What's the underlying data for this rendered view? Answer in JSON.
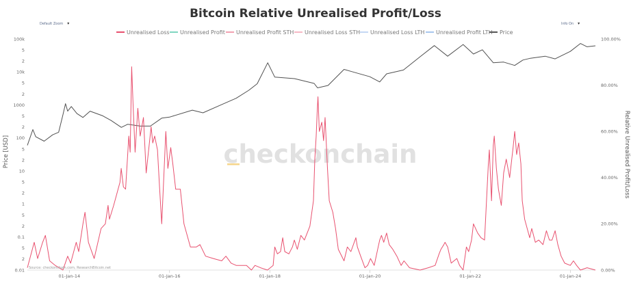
{
  "chart_data": {
    "type": "line",
    "title": "Bitcoin Relative Unrealised Profit/Loss",
    "controls": {
      "left_dropdown": "Default Zoom",
      "right_dropdown": "Info On"
    },
    "legend": [
      {
        "name": "Unrealised Loss",
        "color": "#e8506e"
      },
      {
        "name": "Unrealised Profit",
        "color": "#7fd6c0"
      },
      {
        "name": "Unrealised Profit STH",
        "color": "#f2a0b0"
      },
      {
        "name": "Unrealised Loss STH",
        "color": "#f7b8c4"
      },
      {
        "name": "Unrealised Loss LTH",
        "color": "#c4d8f4"
      },
      {
        "name": "Unrealised Profit LTH",
        "color": "#a7c6ee"
      },
      {
        "name": "Price",
        "color": "#555555"
      }
    ],
    "ylabel_left": "Price [USD]",
    "ylabel_right": "Relative Unrealised Profit/Loss",
    "left_ticks": [
      "100k",
      "5",
      "2",
      "10k",
      "5",
      "2",
      "1000",
      "5",
      "2",
      "100",
      "5",
      "2",
      "10",
      "5",
      "2",
      "1",
      "5",
      "2",
      "0.1",
      "5",
      "2",
      "0.01"
    ],
    "left_scale": "log",
    "left_range": [
      0.01,
      100000
    ],
    "right_ticks": [
      "100.00%",
      "80.00%",
      "60.00%",
      "40.00%",
      "20.00%",
      "0.00%"
    ],
    "right_range": [
      0,
      1
    ],
    "x_ticks": [
      "01-Jan-14",
      "01-Jan-16",
      "01-Jan-18",
      "01-Jan-20",
      "01-Jan-22",
      "01-Jan-24"
    ],
    "x_range": [
      "2013-03-01",
      "2024-07-01"
    ],
    "watermark": "checkonchain",
    "source": "Source: checkonchain.com, ResearchBitcoin.net",
    "series": [
      {
        "name": "Price",
        "axis": "left",
        "points": [
          [
            "2013-03-01",
            60
          ],
          [
            "2013-04-10",
            180
          ],
          [
            "2013-05-01",
            110
          ],
          [
            "2013-07-01",
            80
          ],
          [
            "2013-09-01",
            125
          ],
          [
            "2013-10-15",
            150
          ],
          [
            "2013-11-15",
            500
          ],
          [
            "2013-12-04",
            1100
          ],
          [
            "2013-12-20",
            650
          ],
          [
            "2014-01-15",
            900
          ],
          [
            "2014-02-25",
            550
          ],
          [
            "2014-04-10",
            420
          ],
          [
            "2014-06-01",
            650
          ],
          [
            "2014-09-01",
            470
          ],
          [
            "2014-11-01",
            340
          ],
          [
            "2015-01-15",
            210
          ],
          [
            "2015-03-01",
            260
          ],
          [
            "2015-06-01",
            230
          ],
          [
            "2015-08-15",
            230
          ],
          [
            "2015-11-05",
            400
          ],
          [
            "2016-01-01",
            430
          ],
          [
            "2016-06-15",
            700
          ],
          [
            "2016-09-01",
            580
          ],
          [
            "2017-01-01",
            970
          ],
          [
            "2017-05-01",
            1600
          ],
          [
            "2017-08-01",
            2800
          ],
          [
            "2017-10-01",
            4400
          ],
          [
            "2017-12-17",
            19000
          ],
          [
            "2018-02-06",
            7000
          ],
          [
            "2018-06-30",
            6300
          ],
          [
            "2018-11-20",
            4500
          ],
          [
            "2018-12-15",
            3300
          ],
          [
            "2019-03-01",
            3900
          ],
          [
            "2019-06-26",
            12000
          ],
          [
            "2019-09-01",
            10000
          ],
          [
            "2019-12-31",
            7200
          ],
          [
            "2020-03-12",
            5000
          ],
          [
            "2020-05-01",
            8800
          ],
          [
            "2020-09-01",
            11500
          ],
          [
            "2020-12-31",
            29000
          ],
          [
            "2021-04-14",
            63000
          ],
          [
            "2021-07-20",
            30000
          ],
          [
            "2021-11-10",
            68000
          ],
          [
            "2022-01-24",
            35000
          ],
          [
            "2022-03-30",
            47000
          ],
          [
            "2022-06-18",
            19000
          ],
          [
            "2022-09-01",
            20000
          ],
          [
            "2022-11-21",
            15800
          ],
          [
            "2023-01-20",
            23000
          ],
          [
            "2023-03-15",
            26000
          ],
          [
            "2023-07-01",
            30000
          ],
          [
            "2023-09-11",
            25000
          ],
          [
            "2023-12-31",
            42000
          ],
          [
            "2024-03-14",
            73000
          ],
          [
            "2024-05-01",
            58000
          ],
          [
            "2024-07-01",
            62000
          ]
        ]
      },
      {
        "name": "Unrealised Loss",
        "axis": "right",
        "points": [
          [
            "2013-03-01",
            0.01
          ],
          [
            "2013-04-20",
            0.12
          ],
          [
            "2013-05-15",
            0.05
          ],
          [
            "2013-06-20",
            0.12
          ],
          [
            "2013-07-10",
            0.15
          ],
          [
            "2013-08-10",
            0.04
          ],
          [
            "2013-09-20",
            0.02
          ],
          [
            "2013-11-15",
            0.0
          ],
          [
            "2013-12-20",
            0.06
          ],
          [
            "2014-01-10",
            0.03
          ],
          [
            "2014-02-20",
            0.12
          ],
          [
            "2014-03-10",
            0.08
          ],
          [
            "2014-04-10",
            0.2
          ],
          [
            "2014-04-25",
            0.25
          ],
          [
            "2014-05-20",
            0.12
          ],
          [
            "2014-07-01",
            0.05
          ],
          [
            "2014-08-20",
            0.18
          ],
          [
            "2014-09-20",
            0.2
          ],
          [
            "2014-10-10",
            0.28
          ],
          [
            "2014-10-20",
            0.22
          ],
          [
            "2014-11-20",
            0.28
          ],
          [
            "2015-01-05",
            0.38
          ],
          [
            "2015-01-14",
            0.44
          ],
          [
            "2015-01-30",
            0.36
          ],
          [
            "2015-02-15",
            0.35
          ],
          [
            "2015-03-10",
            0.58
          ],
          [
            "2015-03-20",
            0.51
          ],
          [
            "2015-03-31",
            0.88
          ],
          [
            "2015-04-10",
            0.72
          ],
          [
            "2015-04-25",
            0.51
          ],
          [
            "2015-05-15",
            0.7
          ],
          [
            "2015-06-01",
            0.58
          ],
          [
            "2015-06-25",
            0.66
          ],
          [
            "2015-07-15",
            0.42
          ],
          [
            "2015-08-20",
            0.62
          ],
          [
            "2015-09-01",
            0.55
          ],
          [
            "2015-09-15",
            0.58
          ],
          [
            "2015-10-05",
            0.52
          ],
          [
            "2015-10-20",
            0.36
          ],
          [
            "2015-11-05",
            0.2
          ],
          [
            "2015-11-20",
            0.4
          ],
          [
            "2015-12-05",
            0.6
          ],
          [
            "2015-12-20",
            0.44
          ],
          [
            "2016-01-10",
            0.53
          ],
          [
            "2016-01-25",
            0.46
          ],
          [
            "2016-02-15",
            0.35
          ],
          [
            "2016-03-20",
            0.35
          ],
          [
            "2016-04-15",
            0.2
          ],
          [
            "2016-06-01",
            0.1
          ],
          [
            "2016-07-15",
            0.1
          ],
          [
            "2016-08-10",
            0.11
          ],
          [
            "2016-09-20",
            0.06
          ],
          [
            "2016-11-15",
            0.05
          ],
          [
            "2017-01-15",
            0.04
          ],
          [
            "2017-02-15",
            0.06
          ],
          [
            "2017-03-25",
            0.03
          ],
          [
            "2017-05-01",
            0.02
          ],
          [
            "2017-06-15",
            0.02
          ],
          [
            "2017-07-15",
            0.02
          ],
          [
            "2017-08-20",
            0.0
          ],
          [
            "2017-09-15",
            0.02
          ],
          [
            "2017-10-25",
            0.01
          ],
          [
            "2017-12-15",
            0.0
          ],
          [
            "2018-01-25",
            0.02
          ],
          [
            "2018-02-06",
            0.1
          ],
          [
            "2018-02-25",
            0.07
          ],
          [
            "2018-03-20",
            0.08
          ],
          [
            "2018-04-05",
            0.14
          ],
          [
            "2018-04-20",
            0.08
          ],
          [
            "2018-05-20",
            0.07
          ],
          [
            "2018-06-15",
            0.1
          ],
          [
            "2018-06-29",
            0.13
          ],
          [
            "2018-07-20",
            0.09
          ],
          [
            "2018-08-15",
            0.15
          ],
          [
            "2018-09-10",
            0.13
          ],
          [
            "2018-10-20",
            0.19
          ],
          [
            "2018-11-15",
            0.3
          ],
          [
            "2018-11-25",
            0.48
          ],
          [
            "2018-12-05",
            0.58
          ],
          [
            "2018-12-12",
            0.68
          ],
          [
            "2018-12-18",
            0.75
          ],
          [
            "2018-12-28",
            0.6
          ],
          [
            "2019-01-15",
            0.64
          ],
          [
            "2019-01-28",
            0.56
          ],
          [
            "2019-02-08",
            0.66
          ],
          [
            "2019-02-25",
            0.44
          ],
          [
            "2019-03-10",
            0.3
          ],
          [
            "2019-04-05",
            0.25
          ],
          [
            "2019-04-25",
            0.18
          ],
          [
            "2019-05-15",
            0.09
          ],
          [
            "2019-06-26",
            0.04
          ],
          [
            "2019-07-20",
            0.1
          ],
          [
            "2019-08-15",
            0.08
          ],
          [
            "2019-09-20",
            0.14
          ],
          [
            "2019-10-01",
            0.1
          ],
          [
            "2019-10-25",
            0.06
          ],
          [
            "2019-11-25",
            0.01
          ],
          [
            "2019-12-15",
            0.02
          ],
          [
            "2020-01-05",
            0.05
          ],
          [
            "2020-02-01",
            0.02
          ],
          [
            "2020-03-01",
            0.1
          ],
          [
            "2020-03-12",
            0.13
          ],
          [
            "2020-03-25",
            0.15
          ],
          [
            "2020-04-10",
            0.12
          ],
          [
            "2020-05-01",
            0.16
          ],
          [
            "2020-05-20",
            0.11
          ],
          [
            "2020-06-15",
            0.09
          ],
          [
            "2020-07-15",
            0.06
          ],
          [
            "2020-08-15",
            0.02
          ],
          [
            "2020-09-05",
            0.04
          ],
          [
            "2020-10-15",
            0.01
          ],
          [
            "2020-12-31",
            0.0
          ],
          [
            "2021-03-01",
            0.01
          ],
          [
            "2021-04-20",
            0.02
          ],
          [
            "2021-05-19",
            0.07
          ],
          [
            "2021-06-01",
            0.09
          ],
          [
            "2021-06-22",
            0.11
          ],
          [
            "2021-07-01",
            0.12
          ],
          [
            "2021-07-20",
            0.1
          ],
          [
            "2021-08-15",
            0.03
          ],
          [
            "2021-09-25",
            0.05
          ],
          [
            "2021-10-15",
            0.02
          ],
          [
            "2021-11-10",
            0.0
          ],
          [
            "2021-12-04",
            0.1
          ],
          [
            "2021-12-20",
            0.08
          ],
          [
            "2022-01-10",
            0.13
          ],
          [
            "2022-01-24",
            0.2
          ],
          [
            "2022-02-24",
            0.16
          ],
          [
            "2022-03-20",
            0.14
          ],
          [
            "2022-04-15",
            0.13
          ],
          [
            "2022-05-12",
            0.45
          ],
          [
            "2022-05-20",
            0.52
          ],
          [
            "2022-06-05",
            0.3
          ],
          [
            "2022-06-18",
            0.54
          ],
          [
            "2022-06-25",
            0.58
          ],
          [
            "2022-07-10",
            0.44
          ],
          [
            "2022-07-25",
            0.35
          ],
          [
            "2022-08-15",
            0.28
          ],
          [
            "2022-09-01",
            0.42
          ],
          [
            "2022-09-20",
            0.48
          ],
          [
            "2022-10-15",
            0.4
          ],
          [
            "2022-11-09",
            0.53
          ],
          [
            "2022-11-21",
            0.6
          ],
          [
            "2022-12-05",
            0.5
          ],
          [
            "2022-12-20",
            0.55
          ],
          [
            "2023-01-05",
            0.46
          ],
          [
            "2023-01-15",
            0.3
          ],
          [
            "2023-02-01",
            0.22
          ],
          [
            "2023-03-10",
            0.14
          ],
          [
            "2023-03-25",
            0.18
          ],
          [
            "2023-04-20",
            0.12
          ],
          [
            "2023-05-15",
            0.13
          ],
          [
            "2023-06-15",
            0.11
          ],
          [
            "2023-07-10",
            0.17
          ],
          [
            "2023-08-01",
            0.13
          ],
          [
            "2023-08-20",
            0.13
          ],
          [
            "2023-09-11",
            0.17
          ],
          [
            "2023-10-01",
            0.11
          ],
          [
            "2023-10-25",
            0.06
          ],
          [
            "2023-11-20",
            0.03
          ],
          [
            "2023-12-31",
            0.02
          ],
          [
            "2024-01-23",
            0.04
          ],
          [
            "2024-02-15",
            0.02
          ],
          [
            "2024-03-14",
            0.0
          ],
          [
            "2024-05-01",
            0.01
          ],
          [
            "2024-07-01",
            0.0
          ]
        ]
      }
    ]
  }
}
